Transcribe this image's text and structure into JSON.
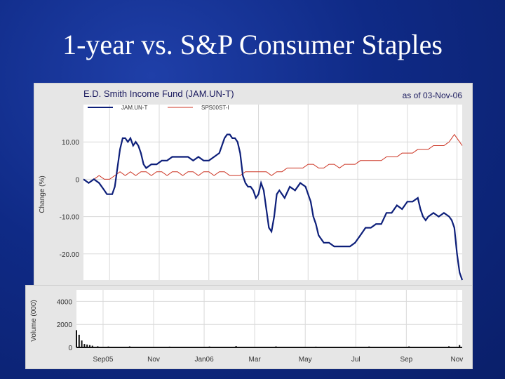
{
  "slide": {
    "title": "1-year vs. S&P Consumer Staples"
  },
  "colors": {
    "background": "#0f2a86",
    "panel": "#e6e6e6",
    "series_primary": "#0d1f7a",
    "series_benchmark": "#cc3322"
  },
  "chart_data": [
    {
      "type": "line",
      "title": "E.D. Smith Income Fund (JAM.UN-T)",
      "date_note": "as of 03-Nov-06",
      "ylabel": "Change (%)",
      "yticks": [
        "10.00",
        "0",
        "-10.00",
        "-20.00"
      ],
      "ytick_values": [
        10,
        0,
        -10,
        -20
      ],
      "ylim": [
        -27,
        20
      ],
      "grid": true,
      "legend_position": "top-left",
      "series": [
        {
          "name": "JAM.UN-T",
          "color": "#0d1f7a",
          "points": [
            [
              0,
              0
            ],
            [
              2,
              -1
            ],
            [
              4,
              0
            ],
            [
              6,
              -1
            ],
            [
              8,
              -3
            ],
            [
              9,
              -4
            ],
            [
              11,
              -4
            ],
            [
              12,
              -2
            ],
            [
              13,
              3
            ],
            [
              14,
              8
            ],
            [
              15,
              11
            ],
            [
              16,
              11
            ],
            [
              17,
              10
            ],
            [
              18,
              11
            ],
            [
              19,
              9
            ],
            [
              20,
              10
            ],
            [
              21,
              9
            ],
            [
              22,
              7
            ],
            [
              23,
              4
            ],
            [
              24,
              3
            ],
            [
              26,
              4
            ],
            [
              28,
              4
            ],
            [
              30,
              5
            ],
            [
              32,
              5
            ],
            [
              34,
              6
            ],
            [
              36,
              6
            ],
            [
              38,
              6
            ],
            [
              40,
              6
            ],
            [
              42,
              5
            ],
            [
              44,
              6
            ],
            [
              46,
              5
            ],
            [
              48,
              5
            ],
            [
              50,
              6
            ],
            [
              52,
              7
            ],
            [
              53,
              9
            ],
            [
              54,
              11
            ],
            [
              55,
              12
            ],
            [
              56,
              12
            ],
            [
              57,
              11
            ],
            [
              58,
              11
            ],
            [
              59,
              10
            ],
            [
              60,
              7
            ],
            [
              61,
              1
            ],
            [
              62,
              -1
            ],
            [
              63,
              -2
            ],
            [
              64,
              -2
            ],
            [
              65,
              -3
            ],
            [
              66,
              -5
            ],
            [
              67,
              -4
            ],
            [
              68,
              -1
            ],
            [
              69,
              -3
            ],
            [
              70,
              -8
            ],
            [
              71,
              -13
            ],
            [
              72,
              -14
            ],
            [
              73,
              -10
            ],
            [
              74,
              -4
            ],
            [
              75,
              -3
            ],
            [
              77,
              -5
            ],
            [
              79,
              -2
            ],
            [
              81,
              -3
            ],
            [
              83,
              -1
            ],
            [
              85,
              -2
            ],
            [
              86,
              -4
            ],
            [
              87,
              -6
            ],
            [
              88,
              -10
            ],
            [
              89,
              -12
            ],
            [
              90,
              -15
            ],
            [
              91,
              -16
            ],
            [
              92,
              -17
            ],
            [
              94,
              -17
            ],
            [
              96,
              -18
            ],
            [
              98,
              -18
            ],
            [
              100,
              -18
            ],
            [
              102,
              -18
            ],
            [
              104,
              -17
            ],
            [
              106,
              -15
            ],
            [
              108,
              -13
            ],
            [
              110,
              -13
            ],
            [
              112,
              -12
            ],
            [
              114,
              -12
            ],
            [
              116,
              -9
            ],
            [
              118,
              -9
            ],
            [
              120,
              -7
            ],
            [
              122,
              -8
            ],
            [
              124,
              -6
            ],
            [
              126,
              -6
            ],
            [
              128,
              -5
            ],
            [
              129,
              -8
            ],
            [
              130,
              -10
            ],
            [
              131,
              -11
            ],
            [
              132,
              -10
            ],
            [
              134,
              -9
            ],
            [
              136,
              -10
            ],
            [
              138,
              -9
            ],
            [
              140,
              -10
            ],
            [
              141,
              -11
            ],
            [
              142,
              -13
            ],
            [
              143,
              -20
            ],
            [
              144,
              -25
            ],
            [
              145,
              -27
            ]
          ]
        },
        {
          "name": "SPS00ST-I",
          "color": "#cc3322",
          "points": [
            [
              0,
              0
            ],
            [
              2,
              -1
            ],
            [
              4,
              0
            ],
            [
              6,
              1
            ],
            [
              8,
              0
            ],
            [
              10,
              0
            ],
            [
              12,
              1
            ],
            [
              14,
              2
            ],
            [
              16,
              1
            ],
            [
              18,
              2
            ],
            [
              20,
              1
            ],
            [
              22,
              2
            ],
            [
              24,
              2
            ],
            [
              26,
              1
            ],
            [
              28,
              2
            ],
            [
              30,
              2
            ],
            [
              32,
              1
            ],
            [
              34,
              2
            ],
            [
              36,
              2
            ],
            [
              38,
              1
            ],
            [
              40,
              2
            ],
            [
              42,
              2
            ],
            [
              44,
              1
            ],
            [
              46,
              2
            ],
            [
              48,
              2
            ],
            [
              50,
              1
            ],
            [
              52,
              2
            ],
            [
              54,
              2
            ],
            [
              56,
              1
            ],
            [
              58,
              1
            ],
            [
              60,
              1
            ],
            [
              62,
              2
            ],
            [
              64,
              2
            ],
            [
              66,
              2
            ],
            [
              68,
              2
            ],
            [
              70,
              2
            ],
            [
              72,
              1
            ],
            [
              74,
              2
            ],
            [
              76,
              2
            ],
            [
              78,
              3
            ],
            [
              80,
              3
            ],
            [
              82,
              3
            ],
            [
              84,
              3
            ],
            [
              86,
              4
            ],
            [
              88,
              4
            ],
            [
              90,
              3
            ],
            [
              92,
              3
            ],
            [
              94,
              4
            ],
            [
              96,
              4
            ],
            [
              98,
              3
            ],
            [
              100,
              4
            ],
            [
              102,
              4
            ],
            [
              104,
              4
            ],
            [
              106,
              5
            ],
            [
              108,
              5
            ],
            [
              110,
              5
            ],
            [
              112,
              5
            ],
            [
              114,
              5
            ],
            [
              116,
              6
            ],
            [
              118,
              6
            ],
            [
              120,
              6
            ],
            [
              122,
              7
            ],
            [
              124,
              7
            ],
            [
              126,
              7
            ],
            [
              128,
              8
            ],
            [
              130,
              8
            ],
            [
              132,
              8
            ],
            [
              134,
              9
            ],
            [
              136,
              9
            ],
            [
              138,
              9
            ],
            [
              140,
              10
            ],
            [
              142,
              12
            ],
            [
              144,
              10
            ],
            [
              145,
              9
            ]
          ]
        }
      ]
    },
    {
      "type": "bar",
      "ylabel": "Volume (000)",
      "yticks": [
        "4000",
        "2000",
        "0"
      ],
      "ytick_values": [
        4000,
        2000,
        0
      ],
      "ylim": [
        0,
        5000
      ],
      "grid": true,
      "x_tick_labels": [
        "Sep05",
        "Nov",
        "Jan06",
        "Mar",
        "May",
        "Jul",
        "Sep",
        "Nov"
      ],
      "x_tick_weeks": [
        10,
        29,
        48,
        67,
        86,
        105,
        124,
        143
      ],
      "week_count": 146,
      "bars": [
        {
          "week": 0,
          "value": 1500
        },
        {
          "week": 1,
          "value": 1100
        },
        {
          "week": 2,
          "value": 600
        },
        {
          "week": 3,
          "value": 300
        },
        {
          "week": 4,
          "value": 250
        },
        {
          "week": 5,
          "value": 200
        },
        {
          "week": 6,
          "value": 150
        },
        {
          "week": 8,
          "value": 100
        },
        {
          "week": 12,
          "value": 80
        },
        {
          "week": 20,
          "value": 90
        },
        {
          "week": 35,
          "value": 70
        },
        {
          "week": 50,
          "value": 80
        },
        {
          "week": 60,
          "value": 120
        },
        {
          "week": 75,
          "value": 90
        },
        {
          "week": 90,
          "value": 70
        },
        {
          "week": 110,
          "value": 80
        },
        {
          "week": 125,
          "value": 90
        },
        {
          "week": 140,
          "value": 100
        },
        {
          "week": 144,
          "value": 200
        }
      ]
    }
  ]
}
